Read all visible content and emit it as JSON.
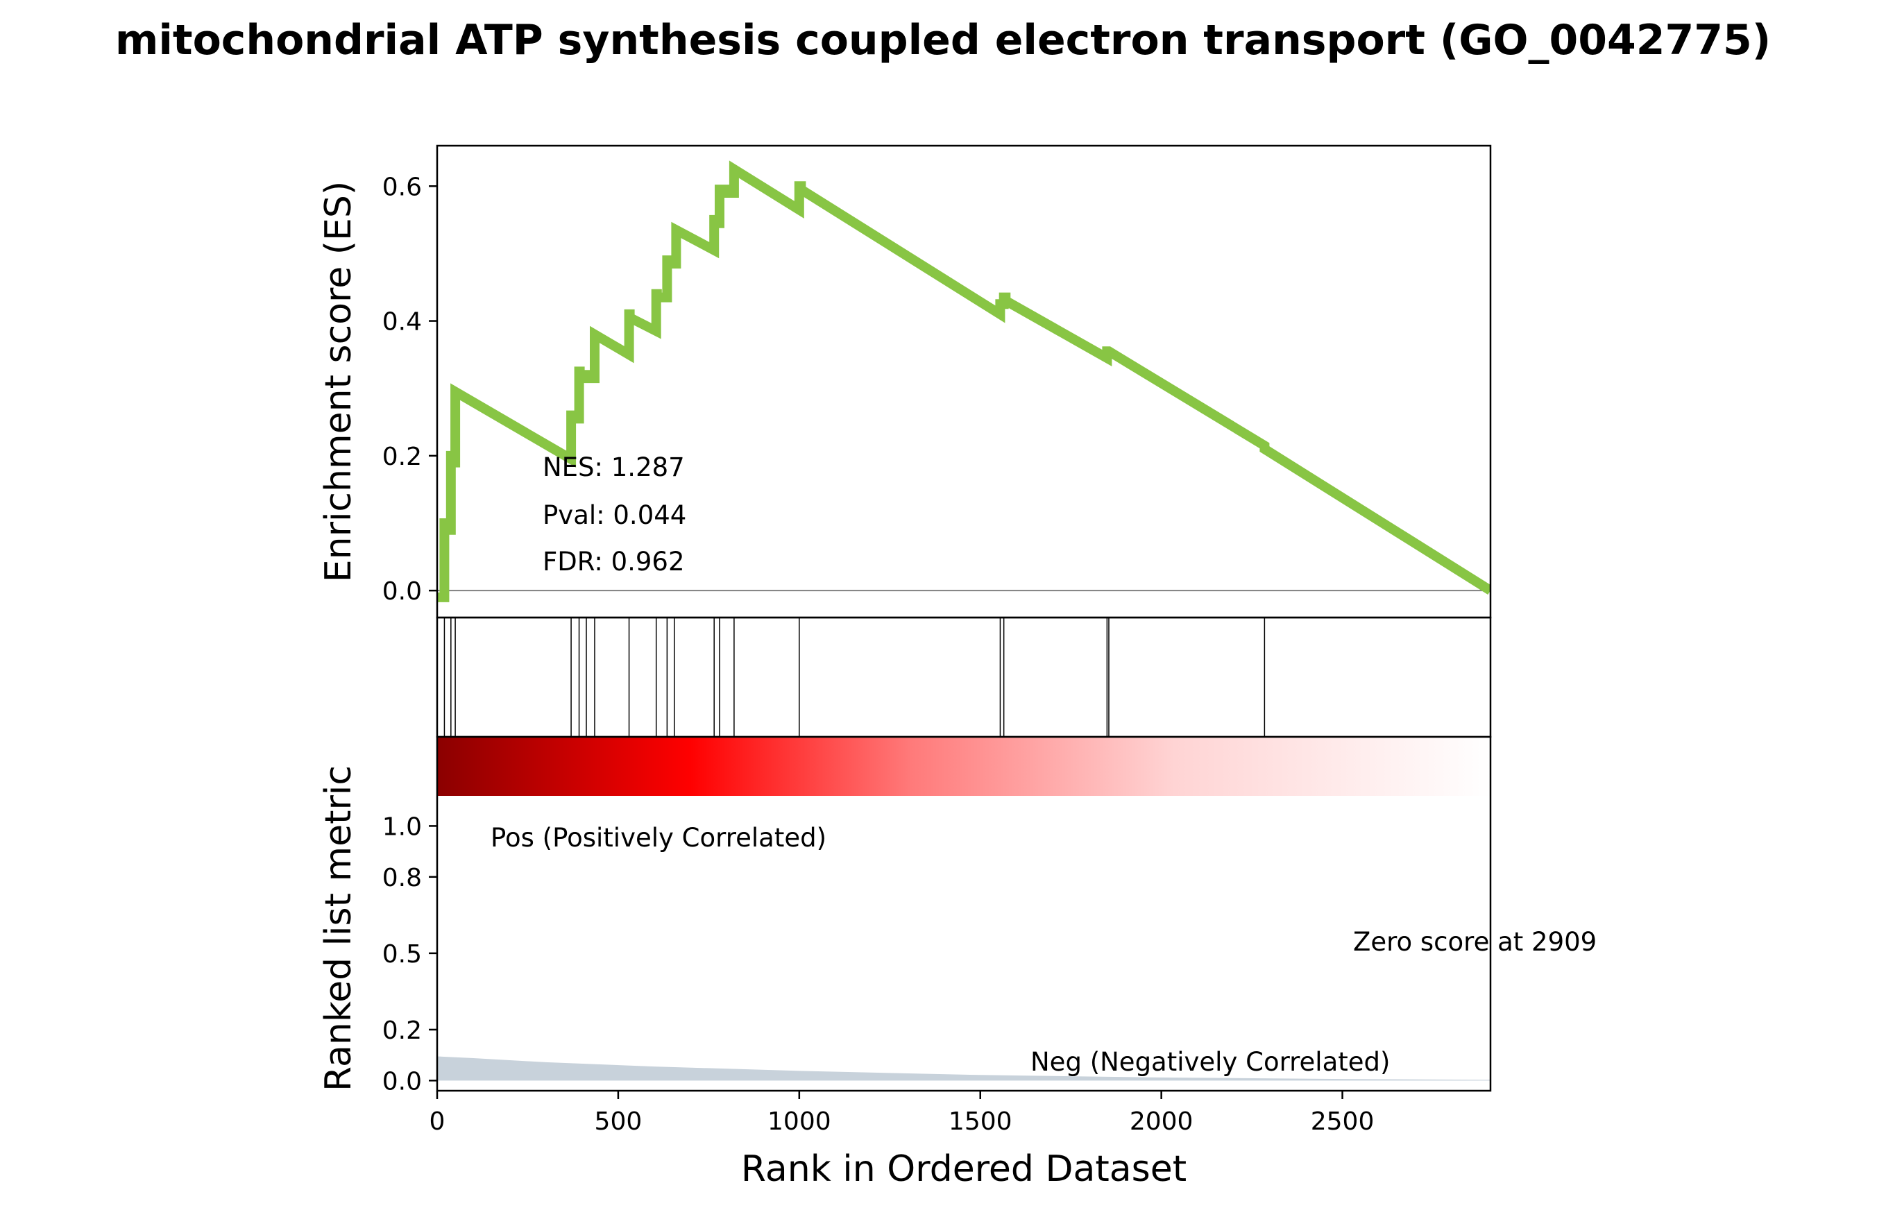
{
  "chart_data": {
    "type": "line",
    "title": "mitochondrial ATP synthesis coupled electron transport (GO_0042775)",
    "es_panel": {
      "ylabel": "Enrichment score (ES)",
      "ylim": [
        -0.04,
        0.66
      ],
      "yticks": [
        0.0,
        0.2,
        0.4,
        0.6
      ],
      "ytick_labels": [
        "0.0",
        "0.2",
        "0.4",
        "0.6"
      ],
      "line_color": "#88c544",
      "zero_line": true,
      "stats": {
        "nes": "NES: 1.287",
        "pval": "Pval: 0.044",
        "fdr": "FDR: 0.962"
      },
      "series": [
        {
          "x": [
            0,
            20,
            20,
            22,
            22,
            38,
            38,
            42,
            42,
            50,
            50,
            370,
            370,
            372,
            372,
            392,
            392,
            394,
            394,
            412,
            412,
            435,
            435,
            530,
            530,
            532,
            532,
            605,
            605,
            607,
            607,
            635,
            635,
            655,
            655,
            660,
            660,
            765,
            765,
            775,
            775,
            780,
            780,
            805,
            805,
            820,
            820,
            1000,
            1000,
            1005,
            1005,
            1555,
            1555,
            1565,
            1565,
            1570,
            1570,
            1850,
            1850,
            1855,
            1855,
            2285,
            2285,
            2909
          ],
          "y": [
            -0.01,
            -0.01,
            0.1,
            0.1,
            0.09,
            0.09,
            0.2,
            0.2,
            0.19,
            0.19,
            0.295,
            0.195,
            0.26,
            0.26,
            0.255,
            0.255,
            0.325,
            0.325,
            0.32,
            0.32,
            0.315,
            0.315,
            0.38,
            0.35,
            0.41,
            0.41,
            0.405,
            0.385,
            0.44,
            0.44,
            0.435,
            0.435,
            0.49,
            0.49,
            0.485,
            0.485,
            0.535,
            0.505,
            0.55,
            0.55,
            0.545,
            0.545,
            0.595,
            0.595,
            0.59,
            0.59,
            0.625,
            0.565,
            0.6,
            0.6,
            0.595,
            0.41,
            0.425,
            0.425,
            0.435,
            0.435,
            0.43,
            0.345,
            0.355,
            0.355,
            0.355,
            0.215,
            0.21,
            0.0
          ]
        }
      ]
    },
    "hits_panel": {
      "hit_ranks": [
        20,
        38,
        50,
        370,
        392,
        412,
        435,
        530,
        605,
        635,
        655,
        765,
        780,
        820,
        1000,
        1555,
        1565,
        1850,
        1855,
        2285
      ]
    },
    "metric_panel": {
      "ylabel": "Ranked list metric",
      "xlabel": "Rank in Ordered Dataset",
      "xlim": [
        0,
        2909
      ],
      "xticks": [
        0,
        500,
        1000,
        1500,
        2000,
        2500
      ],
      "xtick_labels": [
        "0",
        "500",
        "1000",
        "1500",
        "2000",
        "2500"
      ],
      "ylim": [
        -0.04,
        1.35
      ],
      "yticks": [
        0.0,
        0.2,
        0.5,
        0.8,
        1.0
      ],
      "ytick_labels": [
        "0.0",
        "0.2",
        "0.5",
        "0.8",
        "1.0"
      ],
      "fill_color": "#c8d2db",
      "metric_curve": {
        "x": [
          0,
          100,
          300,
          600,
          1000,
          1500,
          2000,
          2500,
          2909
        ],
        "y": [
          0.095,
          0.088,
          0.072,
          0.055,
          0.038,
          0.022,
          0.012,
          0.006,
          0.003
        ]
      },
      "gradient_colors": [
        "#8b0000",
        "#ff0000",
        "#ffffff"
      ],
      "pos_label": "Pos (Positively Correlated)",
      "pos_color": "#ff0000",
      "neg_label": "Neg (Negatively Correlated)",
      "neg_color": "#0000ff",
      "zero_label": "Zero score at 2909"
    }
  }
}
